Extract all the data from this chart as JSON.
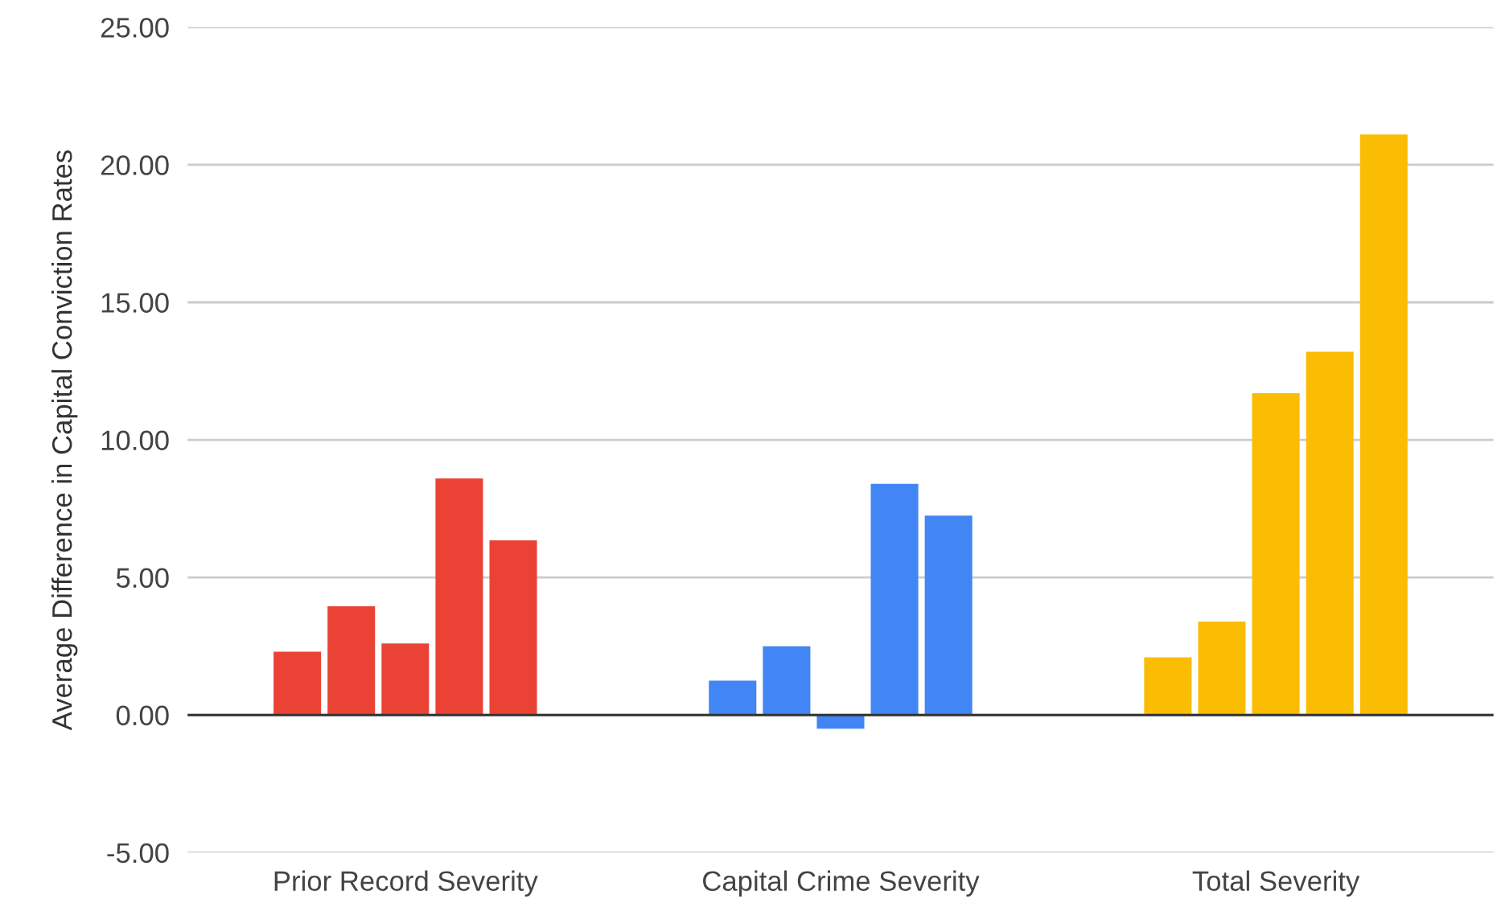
{
  "chart_data": {
    "type": "bar",
    "ylabel": "Average Difference in Capital Conviction Rates",
    "categories": [
      "Prior Record Severity",
      "Capital Crime Severity",
      "Total Severity"
    ],
    "series": [
      {
        "colors": [
          "#ea4335",
          "#4285f4",
          "#fbbc04"
        ],
        "values": [
          2.3,
          1.25,
          2.1
        ]
      },
      {
        "colors": [
          "#ea4335",
          "#4285f4",
          "#fbbc04"
        ],
        "values": [
          3.95,
          2.5,
          3.4
        ]
      },
      {
        "colors": [
          "#ea4335",
          "#4285f4",
          "#fbbc04"
        ],
        "values": [
          2.6,
          -0.5,
          11.7
        ]
      },
      {
        "colors": [
          "#ea4335",
          "#4285f4",
          "#fbbc04"
        ],
        "values": [
          8.6,
          8.4,
          13.2
        ]
      },
      {
        "colors": [
          "#ea4335",
          "#4285f4",
          "#fbbc04"
        ],
        "values": [
          6.35,
          7.25,
          21.1
        ]
      }
    ],
    "ylim": [
      -5,
      25
    ],
    "yticks": [
      {
        "value": -5,
        "label": "-5.00"
      },
      {
        "value": 0,
        "label": "0.00"
      },
      {
        "value": 5,
        "label": "5.00"
      },
      {
        "value": 10,
        "label": "10.00"
      },
      {
        "value": 15,
        "label": "15.00"
      },
      {
        "value": 20,
        "label": "20.00"
      },
      {
        "value": 25,
        "label": "25.00"
      }
    ],
    "grid": "y",
    "legend": false
  }
}
